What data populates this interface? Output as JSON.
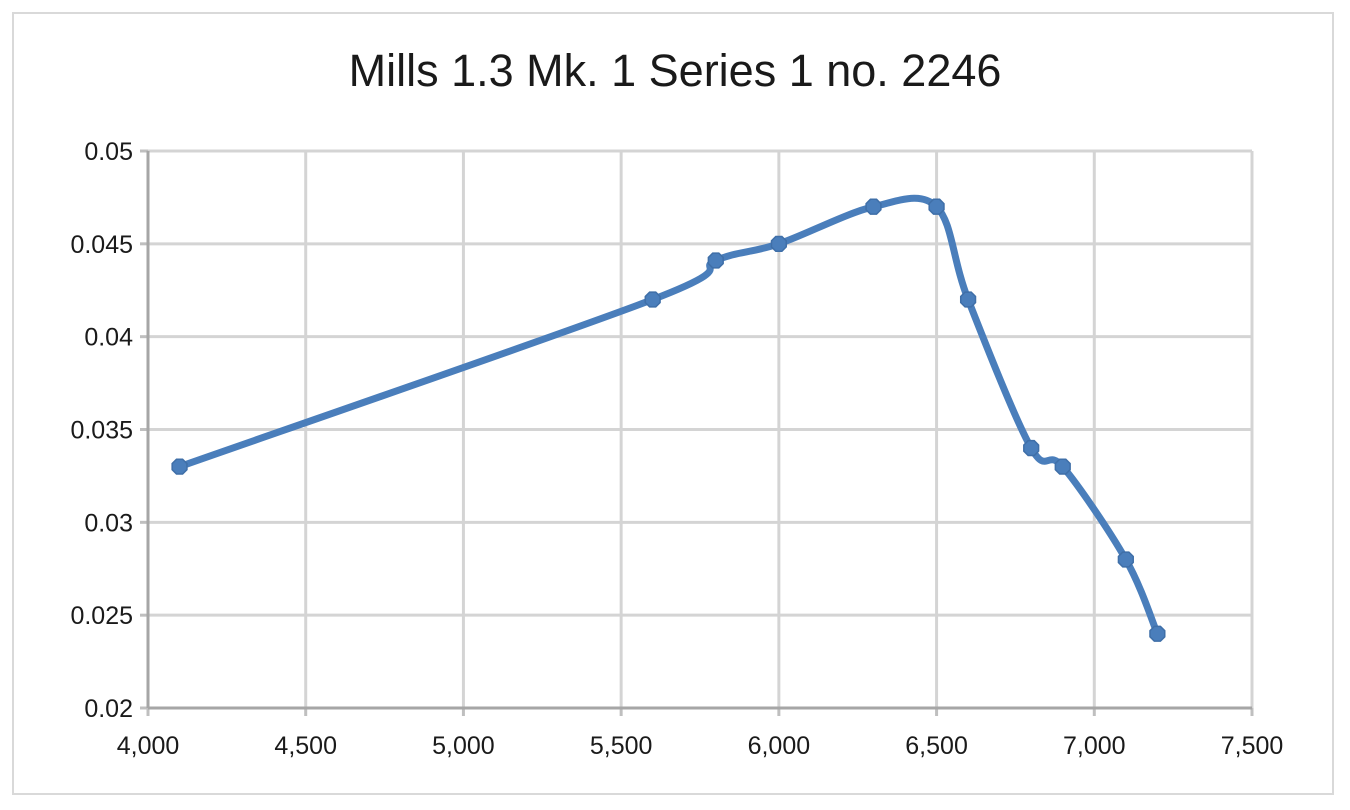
{
  "chart_data": {
    "type": "line",
    "title": "Mills 1.3 Mk. 1 Series 1 no. 2246",
    "xlabel": "",
    "ylabel": "",
    "xlim": [
      4000,
      7500
    ],
    "ylim": [
      0.02,
      0.05
    ],
    "x_ticks": [
      4000,
      4500,
      5000,
      5500,
      6000,
      6500,
      7000,
      7500
    ],
    "x_tick_labels": [
      "4,000",
      "4,500",
      "5,000",
      "5,500",
      "6,000",
      "6,500",
      "7,000",
      "7,500"
    ],
    "y_ticks": [
      0.02,
      0.025,
      0.03,
      0.035,
      0.04,
      0.045,
      0.05
    ],
    "y_tick_labels": [
      "0.02",
      "0.025",
      "0.03",
      "0.035",
      "0.04",
      "0.045",
      "0.05"
    ],
    "grid": true,
    "smooth": true,
    "series": [
      {
        "color": "#4a7ebb",
        "points": [
          {
            "x": 4100,
            "y": 0.033
          },
          {
            "x": 5600,
            "y": 0.042
          },
          {
            "x": 5800,
            "y": 0.0441
          },
          {
            "x": 6000,
            "y": 0.045
          },
          {
            "x": 6300,
            "y": 0.047
          },
          {
            "x": 6500,
            "y": 0.047
          },
          {
            "x": 6600,
            "y": 0.042
          },
          {
            "x": 6800,
            "y": 0.034
          },
          {
            "x": 6900,
            "y": 0.033
          },
          {
            "x": 7100,
            "y": 0.028
          },
          {
            "x": 7200,
            "y": 0.024
          }
        ]
      }
    ]
  }
}
